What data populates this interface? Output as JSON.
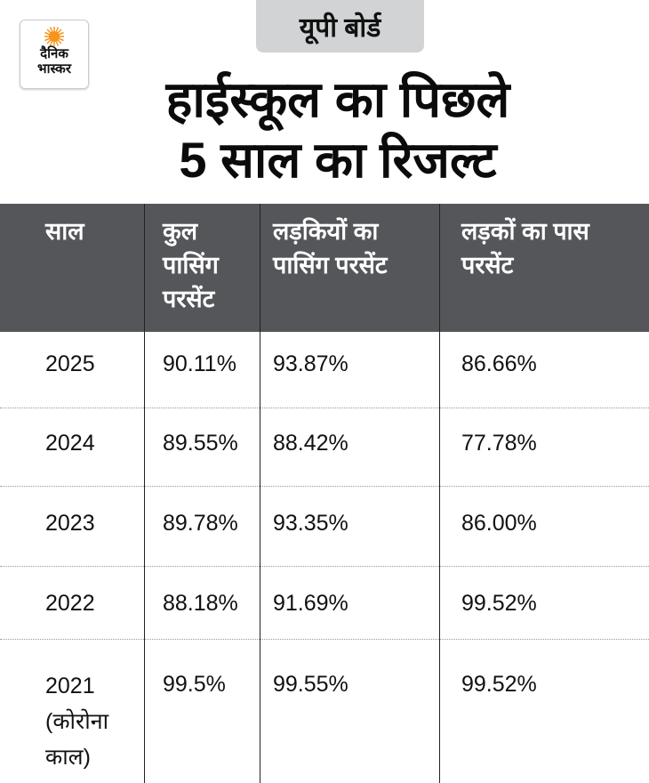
{
  "badge": "यूपी बोर्ड",
  "logo": {
    "line1": "दैनिक",
    "line2": "भास्कर",
    "accent": "#f7941d"
  },
  "title": {
    "line1": "हाईस्कूल का पिछले",
    "line2": "5 साल का रिजल्ट"
  },
  "colors": {
    "header_bg": "#545659",
    "badge_bg": "#d1d3d4"
  },
  "table": {
    "headers": [
      "साल",
      "कुल पासिंग परसेंट",
      "लड़कियों का पासिंग परसेंट",
      "लड़कों का पास परसेंट"
    ],
    "rows": [
      [
        "2025",
        "90.11%",
        "93.87%",
        "86.66%"
      ],
      [
        "2024",
        "89.55%",
        "88.42%",
        "77.78%"
      ],
      [
        "2023",
        "89.78%",
        "93.35%",
        "86.00%"
      ],
      [
        "2022",
        "88.18%",
        "91.69%",
        "99.52%"
      ],
      [
        "2021 (कोरोना काल)",
        "99.5%",
        "99.55%",
        "99.52%"
      ]
    ]
  }
}
